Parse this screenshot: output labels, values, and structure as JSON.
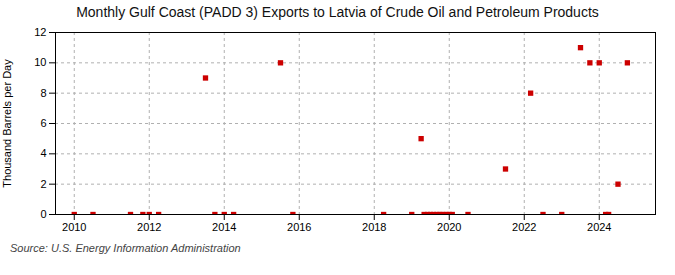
{
  "chart_data": {
    "type": "scatter",
    "title": "Monthly Gulf Coast (PADD 3) Exports to Latvia of Crude Oil and Petroleum Products",
    "ylabel": "Thousand Barrels per Day",
    "source": "Source: U.S. Energy Information Administration",
    "x": [
      2010.0,
      2010.5,
      2011.5,
      2011.83,
      2012.0,
      2012.25,
      2013.5,
      2013.75,
      2014.0,
      2014.25,
      2015.5,
      2015.83,
      2018.25,
      2019.0,
      2019.25,
      2019.33,
      2019.42,
      2019.5,
      2019.58,
      2019.67,
      2019.75,
      2019.83,
      2019.92,
      2020.0,
      2020.08,
      2020.5,
      2021.5,
      2022.17,
      2022.5,
      2023.0,
      2023.5,
      2023.75,
      2024.0,
      2024.17,
      2024.25,
      2024.5,
      2024.75
    ],
    "values": [
      0.0,
      0.0,
      0.0,
      0.0,
      0.0,
      0.0,
      9.0,
      0.0,
      0.0,
      0.0,
      10.0,
      0.0,
      0.0,
      0.0,
      5.0,
      0.0,
      0.0,
      0.0,
      0.0,
      0.0,
      0.0,
      0.0,
      0.0,
      0.0,
      0.0,
      0.0,
      3.0,
      8.0,
      0.0,
      0.0,
      11.0,
      10.0,
      10.0,
      0.0,
      0.0,
      2.0,
      10.0
    ],
    "color": "#cc0000",
    "marker": "square",
    "xlim": [
      2009.5,
      2025.5
    ],
    "xticks": [
      2010,
      2012,
      2014,
      2016,
      2018,
      2020,
      2022,
      2024
    ],
    "ylim": [
      0,
      12
    ],
    "yticks": [
      0,
      2,
      4,
      6,
      8,
      10,
      12
    ],
    "grid": true
  }
}
